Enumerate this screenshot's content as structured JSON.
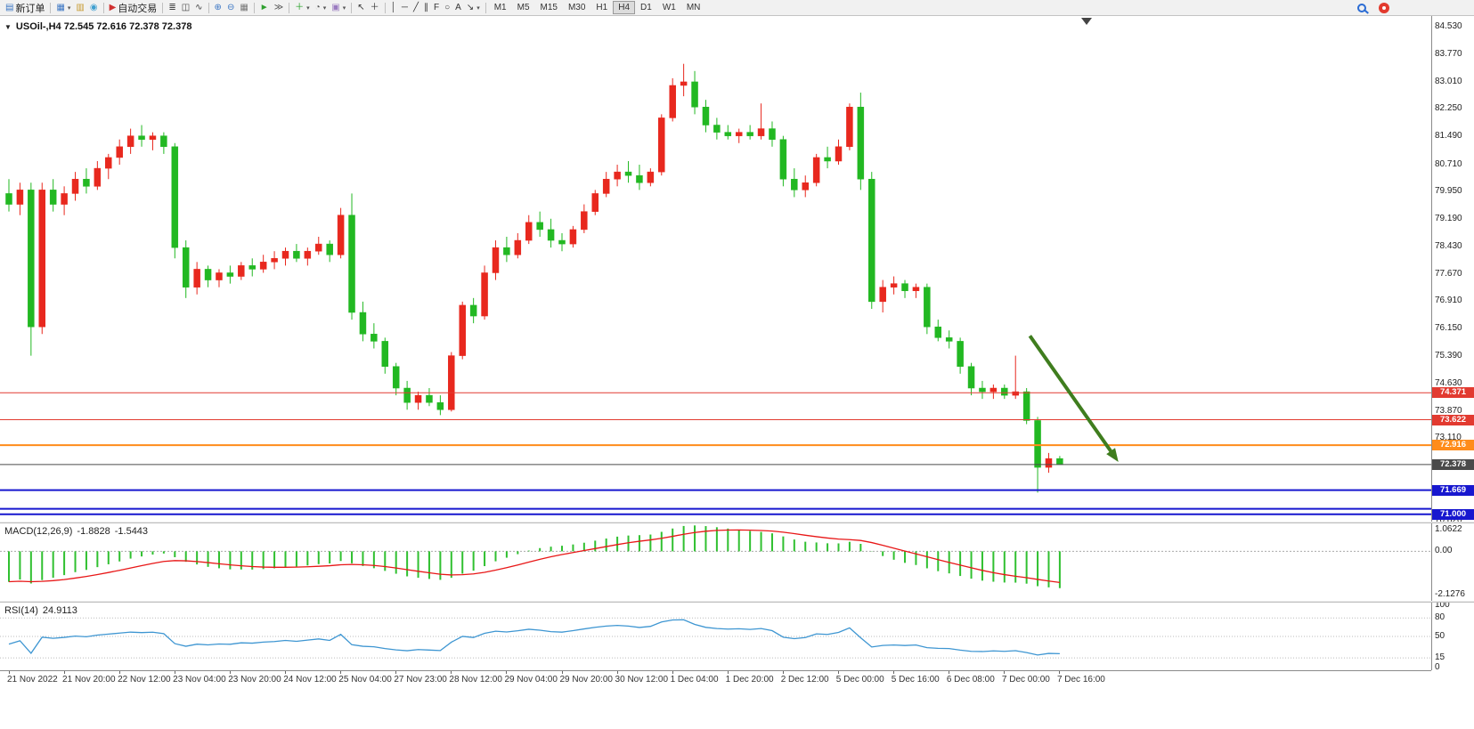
{
  "toolbar": {
    "groups": [
      {
        "name": "orders",
        "buttons": [
          {
            "name": "new-order-button",
            "glyph": "▤",
            "glyph_color": "#3b76c4",
            "label": "新订单"
          }
        ]
      },
      {
        "name": "windows",
        "buttons": [
          {
            "name": "charts-window-button",
            "glyph": "▦",
            "glyph_color": "#3b76c4",
            "caret": true
          },
          {
            "name": "profiles-button",
            "glyph": "▥",
            "glyph_color": "#c79a2f"
          },
          {
            "name": "data-window-button",
            "glyph": "◉",
            "glyph_color": "#3f9fd0"
          }
        ]
      },
      {
        "name": "autotrading",
        "buttons": [
          {
            "name": "auto-trading-button",
            "glyph": "▶",
            "glyph_color": "#d03030",
            "label": "自动交易"
          }
        ]
      },
      {
        "name": "chart-types",
        "buttons": [
          {
            "name": "bar-chart-button",
            "glyph": "≣",
            "glyph_color": "#444"
          },
          {
            "name": "candlestick-chart-button",
            "glyph": "◫",
            "glyph_color": "#444"
          },
          {
            "name": "line-chart-button",
            "glyph": "∿",
            "glyph_color": "#444"
          }
        ]
      },
      {
        "name": "zoom",
        "buttons": [
          {
            "name": "zoom-in-button",
            "glyph": "⊕",
            "glyph_color": "#3b76c4"
          },
          {
            "name": "zoom-out-button",
            "glyph": "⊖",
            "glyph_color": "#3b76c4"
          },
          {
            "name": "tile-windows-button",
            "glyph": "▦",
            "glyph_color": "#777"
          }
        ]
      },
      {
        "name": "scroll",
        "buttons": [
          {
            "name": "auto-scroll-button",
            "glyph": "►",
            "glyph_color": "#2fa02f"
          },
          {
            "name": "chart-shift-button",
            "glyph": "≫",
            "glyph_color": "#555"
          }
        ]
      },
      {
        "name": "insert",
        "buttons": [
          {
            "name": "indicators-button",
            "glyph": "＋",
            "glyph_color": "#1e9e1e",
            "caret": true
          },
          {
            "name": "periods-button",
            "glyph": "◔",
            "glyph_color": "#555",
            "caret": true
          },
          {
            "name": "templates-button",
            "glyph": "▣",
            "glyph_color": "#9a7ac0",
            "caret": true
          }
        ]
      },
      {
        "name": "cursor",
        "buttons": [
          {
            "name": "cursor-button",
            "glyph": "↖",
            "glyph_color": "#333"
          },
          {
            "name": "crosshair-button",
            "glyph": "＋",
            "glyph_color": "#333"
          }
        ]
      },
      {
        "name": "objects",
        "buttons": [
          {
            "name": "vertical-line-button",
            "glyph": "│",
            "glyph_color": "#333"
          },
          {
            "name": "horizontal-line-button",
            "glyph": "─",
            "glyph_color": "#333"
          },
          {
            "name": "trendline-button",
            "glyph": "╱",
            "glyph_color": "#333"
          },
          {
            "name": "channel-button",
            "glyph": "∥",
            "glyph_color": "#333"
          },
          {
            "name": "fibonacci-button",
            "glyph": "F",
            "glyph_color": "#333"
          },
          {
            "name": "shapes-button",
            "glyph": "○",
            "glyph_color": "#333"
          },
          {
            "name": "text-button",
            "glyph": "A",
            "glyph_color": "#333"
          },
          {
            "name": "arrows-button",
            "glyph": "↘",
            "glyph_color": "#333",
            "caret": true
          }
        ]
      }
    ],
    "timeframes": {
      "items": [
        "M1",
        "M5",
        "M15",
        "M30",
        "H1",
        "H4",
        "D1",
        "W1",
        "MN"
      ],
      "active": "H4"
    },
    "right_icons": [
      {
        "name": "search-icon"
      },
      {
        "name": "notification-icon"
      }
    ]
  },
  "chart": {
    "symbol_line": "USOil-,H4 72.545 72.616 72.378 72.378"
  },
  "chart_data": {
    "type": "candlestick",
    "symbol": "USOil",
    "timeframe": "H4",
    "last": {
      "open": "72.545",
      "high": "72.616",
      "low": "72.378",
      "close": "72.378"
    },
    "price_axis": [
      "84.530",
      "83.770",
      "83.010",
      "82.250",
      "81.490",
      "80.710",
      "79.950",
      "79.190",
      "78.430",
      "77.670",
      "76.910",
      "76.150",
      "75.390",
      "74.630",
      "73.870",
      "73.110",
      "72.350",
      "71.590",
      "70.820"
    ],
    "x_labels": [
      "21 Nov 2022",
      "21 Nov 20:00",
      "22 Nov 12:00",
      "23 Nov 04:00",
      "23 Nov 20:00",
      "24 Nov 12:00",
      "25 Nov 04:00",
      "27 Nov 23:00",
      "28 Nov 12:00",
      "29 Nov 04:00",
      "29 Nov 20:00",
      "30 Nov 12:00",
      "1 Dec 04:00",
      "1 Dec 20:00",
      "2 Dec 12:00",
      "5 Dec 00:00",
      "5 Dec 16:00",
      "6 Dec 08:00",
      "7 Dec 00:00",
      "7 Dec 16:00"
    ],
    "ohlc": [
      [
        79.9,
        80.3,
        79.4,
        79.6
      ],
      [
        79.6,
        80.2,
        79.3,
        80.0
      ],
      [
        80.0,
        80.2,
        75.4,
        76.2
      ],
      [
        76.2,
        80.2,
        76.0,
        80.0
      ],
      [
        80.0,
        80.3,
        79.4,
        79.6
      ],
      [
        79.6,
        80.1,
        79.3,
        79.9
      ],
      [
        79.9,
        80.5,
        79.7,
        80.3
      ],
      [
        80.3,
        80.6,
        79.9,
        80.1
      ],
      [
        80.1,
        80.8,
        80.0,
        80.6
      ],
      [
        80.6,
        81.0,
        80.3,
        80.9
      ],
      [
        80.9,
        81.4,
        80.7,
        81.2
      ],
      [
        81.2,
        81.7,
        81.0,
        81.5
      ],
      [
        81.5,
        81.8,
        81.2,
        81.4
      ],
      [
        81.4,
        81.6,
        81.1,
        81.5
      ],
      [
        81.5,
        81.6,
        81.0,
        81.2
      ],
      [
        81.2,
        81.3,
        78.1,
        78.4
      ],
      [
        78.4,
        78.6,
        77.0,
        77.3
      ],
      [
        77.3,
        78.0,
        77.1,
        77.8
      ],
      [
        77.8,
        77.9,
        77.3,
        77.5
      ],
      [
        77.5,
        77.8,
        77.3,
        77.7
      ],
      [
        77.7,
        77.9,
        77.4,
        77.6
      ],
      [
        77.6,
        78.0,
        77.5,
        77.9
      ],
      [
        77.9,
        78.1,
        77.6,
        77.8
      ],
      [
        77.8,
        78.2,
        77.7,
        78.0
      ],
      [
        78.0,
        78.3,
        77.8,
        78.1
      ],
      [
        78.1,
        78.4,
        77.9,
        78.3
      ],
      [
        78.3,
        78.5,
        78.0,
        78.1
      ],
      [
        78.1,
        78.4,
        77.9,
        78.3
      ],
      [
        78.3,
        78.7,
        78.2,
        78.5
      ],
      [
        78.5,
        78.6,
        78.0,
        78.2
      ],
      [
        78.2,
        79.5,
        78.1,
        79.3
      ],
      [
        79.3,
        79.9,
        76.4,
        76.6
      ],
      [
        76.6,
        76.9,
        75.8,
        76.0
      ],
      [
        76.0,
        76.3,
        75.6,
        75.8
      ],
      [
        75.8,
        75.9,
        74.9,
        75.1
      ],
      [
        75.1,
        75.2,
        74.3,
        74.5
      ],
      [
        74.5,
        74.7,
        73.9,
        74.1
      ],
      [
        74.1,
        74.4,
        73.9,
        74.3
      ],
      [
        74.3,
        74.5,
        74.0,
        74.1
      ],
      [
        74.1,
        74.3,
        73.75,
        73.9
      ],
      [
        73.9,
        75.5,
        73.85,
        75.4
      ],
      [
        75.4,
        76.9,
        75.3,
        76.8
      ],
      [
        76.8,
        77.0,
        76.3,
        76.5
      ],
      [
        76.5,
        77.9,
        76.4,
        77.7
      ],
      [
        77.7,
        78.6,
        77.5,
        78.4
      ],
      [
        78.4,
        78.7,
        78.0,
        78.2
      ],
      [
        78.2,
        78.8,
        78.1,
        78.6
      ],
      [
        78.6,
        79.3,
        78.5,
        79.1
      ],
      [
        79.1,
        79.4,
        78.7,
        78.9
      ],
      [
        78.9,
        79.2,
        78.4,
        78.6
      ],
      [
        78.6,
        78.8,
        78.3,
        78.5
      ],
      [
        78.5,
        79.0,
        78.4,
        78.9
      ],
      [
        78.9,
        79.6,
        78.8,
        79.4
      ],
      [
        79.4,
        80.0,
        79.3,
        79.9
      ],
      [
        79.9,
        80.5,
        79.8,
        80.3
      ],
      [
        80.3,
        80.7,
        80.1,
        80.5
      ],
      [
        80.5,
        80.8,
        80.2,
        80.4
      ],
      [
        80.4,
        80.7,
        80.0,
        80.2
      ],
      [
        80.2,
        80.6,
        80.1,
        80.5
      ],
      [
        80.5,
        82.1,
        80.4,
        82.0
      ],
      [
        82.0,
        83.1,
        81.9,
        82.9
      ],
      [
        82.9,
        83.5,
        82.6,
        83.0
      ],
      [
        83.0,
        83.3,
        82.1,
        82.3
      ],
      [
        82.3,
        82.5,
        81.6,
        81.8
      ],
      [
        81.8,
        82.0,
        81.4,
        81.6
      ],
      [
        81.6,
        81.8,
        81.4,
        81.5
      ],
      [
        81.5,
        81.7,
        81.3,
        81.6
      ],
      [
        81.6,
        81.8,
        81.4,
        81.5
      ],
      [
        81.5,
        82.4,
        81.4,
        81.7
      ],
      [
        81.7,
        81.9,
        81.2,
        81.4
      ],
      [
        81.4,
        81.5,
        80.1,
        80.3
      ],
      [
        80.3,
        80.6,
        79.8,
        80.0
      ],
      [
        80.0,
        80.4,
        79.8,
        80.2
      ],
      [
        80.2,
        81.0,
        80.1,
        80.9
      ],
      [
        80.9,
        81.2,
        80.6,
        80.8
      ],
      [
        80.8,
        81.4,
        80.7,
        81.2
      ],
      [
        81.2,
        82.4,
        81.1,
        82.3
      ],
      [
        82.3,
        82.7,
        80.0,
        80.3
      ],
      [
        80.3,
        80.5,
        76.7,
        76.9
      ],
      [
        76.9,
        77.5,
        76.6,
        77.3
      ],
      [
        77.3,
        77.6,
        77.1,
        77.4
      ],
      [
        77.4,
        77.5,
        77.0,
        77.2
      ],
      [
        77.2,
        77.4,
        77.0,
        77.3
      ],
      [
        77.3,
        77.4,
        76.0,
        76.2
      ],
      [
        76.2,
        76.4,
        75.8,
        75.9
      ],
      [
        75.9,
        76.1,
        75.6,
        75.8
      ],
      [
        75.8,
        75.9,
        74.9,
        75.1
      ],
      [
        75.1,
        75.2,
        74.3,
        74.5
      ],
      [
        74.5,
        74.7,
        74.2,
        74.4
      ],
      [
        74.4,
        74.6,
        74.2,
        74.5
      ],
      [
        74.5,
        74.6,
        74.2,
        74.3
      ],
      [
        74.3,
        75.4,
        74.2,
        74.4
      ],
      [
        74.4,
        74.5,
        73.5,
        73.6
      ],
      [
        73.6,
        73.7,
        71.6,
        72.3
      ],
      [
        72.3,
        72.7,
        72.15,
        72.545
      ],
      [
        72.545,
        72.616,
        72.378,
        72.378
      ]
    ],
    "levels": [
      {
        "price": 74.371,
        "label": "74.371",
        "color": "#e23a30",
        "width": 1
      },
      {
        "price": 73.622,
        "label": "73.622",
        "color": "#e23a30",
        "width": 1
      },
      {
        "price": 72.916,
        "label": "72.916",
        "color": "#ff8c1a",
        "width": 2
      },
      {
        "price": 72.378,
        "label": "72.378",
        "color": "#4a4a4a",
        "width": 1
      },
      {
        "price": 71.669,
        "label": "71.669",
        "color": "#1717cf",
        "width": 2
      },
      {
        "price": 71.15,
        "label": null,
        "color": "#1717cf",
        "width": 2
      },
      {
        "price": 71.0,
        "label": "71.000",
        "color": "#1717cf",
        "width": 2
      }
    ],
    "arrow": {
      "from": {
        "bar": 92.3,
        "price": 75.95
      },
      "to": {
        "bar": 100.3,
        "price": 72.45
      },
      "color": "#3f7d1e"
    },
    "colors": {
      "up": "#e8281e",
      "down": "#22b822",
      "macd_hist": "#30c030",
      "macd_signal": "#e81717",
      "rsi_line": "#3e96d2"
    },
    "indicators": {
      "macd": {
        "name": "MACD(12,26,9)",
        "fast": 12,
        "slow": 26,
        "signal_period": 9,
        "main_value": "-1.8828",
        "signal_value": "-1.5443",
        "axis": [
          {
            "v": 1.0622,
            "label": "1.0622"
          },
          {
            "v": 0,
            "label": "0.00"
          },
          {
            "v": -2.1276,
            "label": "-2.1276"
          }
        ],
        "seed": {
          "ema12": 80.0,
          "ema26": 81.6,
          "signal": -1.5
        }
      },
      "rsi": {
        "name": "RSI(14)",
        "period": 14,
        "value": "24.9113",
        "axis": [
          {
            "v": 100,
            "label": "100"
          },
          {
            "v": 80,
            "label": "80"
          },
          {
            "v": 50,
            "label": "50"
          },
          {
            "v": 15,
            "label": "15"
          },
          {
            "v": 0,
            "label": "0"
          }
        ],
        "levels": [
          80,
          50,
          15
        ],
        "seed": {
          "gain": 0.12,
          "loss": 0.2
        }
      }
    }
  }
}
